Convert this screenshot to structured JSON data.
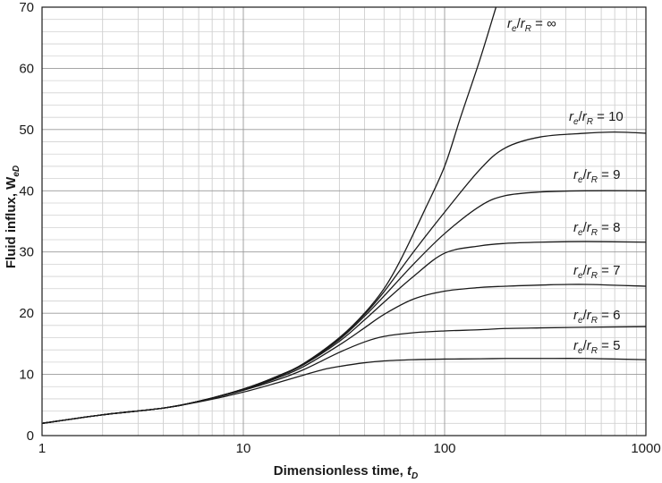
{
  "chart_data": {
    "type": "line",
    "xscale": "log",
    "xlim": [
      1,
      1000
    ],
    "ylim": [
      0,
      70
    ],
    "grid": true,
    "xlabel": {
      "main": "Dimensionless time, ",
      "var": "t",
      "sub": "D"
    },
    "ylabel": {
      "main": "Fluid influx, ",
      "var": "W",
      "sub": "eD"
    },
    "xticks": [
      {
        "value": 1,
        "label": "1"
      },
      {
        "value": 10,
        "label": "10"
      },
      {
        "value": 100,
        "label": "100"
      },
      {
        "value": 1000,
        "label": "1000"
      }
    ],
    "yticks": [
      {
        "value": 0,
        "label": "0"
      },
      {
        "value": 10,
        "label": "10"
      },
      {
        "value": 20,
        "label": "20"
      },
      {
        "value": 30,
        "label": "30"
      },
      {
        "value": 40,
        "label": "40"
      },
      {
        "value": 50,
        "label": "50"
      },
      {
        "value": 60,
        "label": "60"
      },
      {
        "value": 70,
        "label": "70"
      }
    ],
    "series": [
      {
        "name": "infinite",
        "label": {
          "r": "r",
          "e": "e",
          "slash": "/",
          "R": "R",
          "rhs": " = ∞"
        },
        "points": [
          [
            1,
            2.0
          ],
          [
            2,
            3.4
          ],
          [
            4,
            4.5
          ],
          [
            6,
            5.6
          ],
          [
            10,
            7.6
          ],
          [
            15,
            9.8
          ],
          [
            20,
            11.8
          ],
          [
            30,
            16.0
          ],
          [
            40,
            20.0
          ],
          [
            50,
            24.0
          ],
          [
            60,
            28.5
          ],
          [
            80,
            37.0
          ],
          [
            100,
            44.0
          ],
          [
            120,
            52.0
          ],
          [
            150,
            61.5
          ],
          [
            180,
            70.0
          ]
        ]
      },
      {
        "name": "10",
        "label": {
          "r": "r",
          "e": "e",
          "slash": "/",
          "R": "R",
          "rhs": " = 10"
        },
        "points": [
          [
            1,
            2.0
          ],
          [
            2,
            3.4
          ],
          [
            4,
            4.5
          ],
          [
            6,
            5.6
          ],
          [
            10,
            7.6
          ],
          [
            15,
            9.8
          ],
          [
            20,
            11.8
          ],
          [
            30,
            15.9
          ],
          [
            40,
            19.8
          ],
          [
            50,
            23.5
          ],
          [
            70,
            30.0
          ],
          [
            100,
            36.5
          ],
          [
            150,
            43.5
          ],
          [
            200,
            47.0
          ],
          [
            300,
            48.8
          ],
          [
            500,
            49.4
          ],
          [
            700,
            49.6
          ],
          [
            1000,
            49.4
          ]
        ]
      },
      {
        "name": "9",
        "label": {
          "r": "r",
          "e": "e",
          "slash": "/",
          "R": "R",
          "rhs": " = 9"
        },
        "points": [
          [
            1,
            2.0
          ],
          [
            2,
            3.4
          ],
          [
            4,
            4.5
          ],
          [
            6,
            5.6
          ],
          [
            10,
            7.6
          ],
          [
            15,
            9.7
          ],
          [
            20,
            11.7
          ],
          [
            30,
            15.7
          ],
          [
            40,
            19.5
          ],
          [
            50,
            22.8
          ],
          [
            70,
            28.0
          ],
          [
            100,
            33.0
          ],
          [
            150,
            37.5
          ],
          [
            200,
            39.2
          ],
          [
            300,
            39.8
          ],
          [
            500,
            40.0
          ],
          [
            1000,
            40.0
          ]
        ]
      },
      {
        "name": "8",
        "label": {
          "r": "r",
          "e": "e",
          "slash": "/",
          "R": "R",
          "rhs": " = 8"
        },
        "points": [
          [
            1,
            2.0
          ],
          [
            2,
            3.4
          ],
          [
            4,
            4.5
          ],
          [
            6,
            5.6
          ],
          [
            10,
            7.6
          ],
          [
            15,
            9.7
          ],
          [
            20,
            11.6
          ],
          [
            30,
            15.4
          ],
          [
            40,
            18.9
          ],
          [
            50,
            21.8
          ],
          [
            70,
            26.0
          ],
          [
            100,
            29.8
          ],
          [
            150,
            31.0
          ],
          [
            200,
            31.4
          ],
          [
            300,
            31.6
          ],
          [
            500,
            31.7
          ],
          [
            1000,
            31.6
          ]
        ]
      },
      {
        "name": "7",
        "label": {
          "r": "r",
          "e": "e",
          "slash": "/",
          "R": "R",
          "rhs": " = 7"
        },
        "points": [
          [
            1,
            2.0
          ],
          [
            2,
            3.4
          ],
          [
            4,
            4.5
          ],
          [
            6,
            5.6
          ],
          [
            10,
            7.5
          ],
          [
            15,
            9.5
          ],
          [
            20,
            11.3
          ],
          [
            30,
            14.8
          ],
          [
            40,
            17.6
          ],
          [
            50,
            19.8
          ],
          [
            70,
            22.3
          ],
          [
            100,
            23.6
          ],
          [
            150,
            24.2
          ],
          [
            200,
            24.4
          ],
          [
            300,
            24.6
          ],
          [
            500,
            24.7
          ],
          [
            1000,
            24.4
          ]
        ]
      },
      {
        "name": "6",
        "label": {
          "r": "r",
          "e": "e",
          "slash": "/",
          "R": "R",
          "rhs": " = 6"
        },
        "points": [
          [
            1,
            2.0
          ],
          [
            2,
            3.4
          ],
          [
            4,
            4.5
          ],
          [
            6,
            5.6
          ],
          [
            10,
            7.4
          ],
          [
            15,
            9.2
          ],
          [
            20,
            10.8
          ],
          [
            30,
            13.6
          ],
          [
            40,
            15.3
          ],
          [
            50,
            16.2
          ],
          [
            70,
            16.8
          ],
          [
            100,
            17.1
          ],
          [
            150,
            17.3
          ],
          [
            200,
            17.5
          ],
          [
            300,
            17.6
          ],
          [
            500,
            17.7
          ],
          [
            1000,
            17.8
          ]
        ]
      },
      {
        "name": "5",
        "label": {
          "r": "r",
          "e": "e",
          "slash": "/",
          "R": "R",
          "rhs": " = 5"
        },
        "points": [
          [
            1,
            2.0
          ],
          [
            2,
            3.4
          ],
          [
            4,
            4.5
          ],
          [
            6,
            5.5
          ],
          [
            10,
            7.1
          ],
          [
            15,
            8.7
          ],
          [
            20,
            9.9
          ],
          [
            25,
            10.8
          ],
          [
            30,
            11.3
          ],
          [
            40,
            11.9
          ],
          [
            50,
            12.2
          ],
          [
            70,
            12.4
          ],
          [
            100,
            12.5
          ],
          [
            150,
            12.55
          ],
          [
            200,
            12.6
          ],
          [
            300,
            12.6
          ],
          [
            500,
            12.6
          ],
          [
            1000,
            12.4
          ]
        ]
      }
    ]
  }
}
